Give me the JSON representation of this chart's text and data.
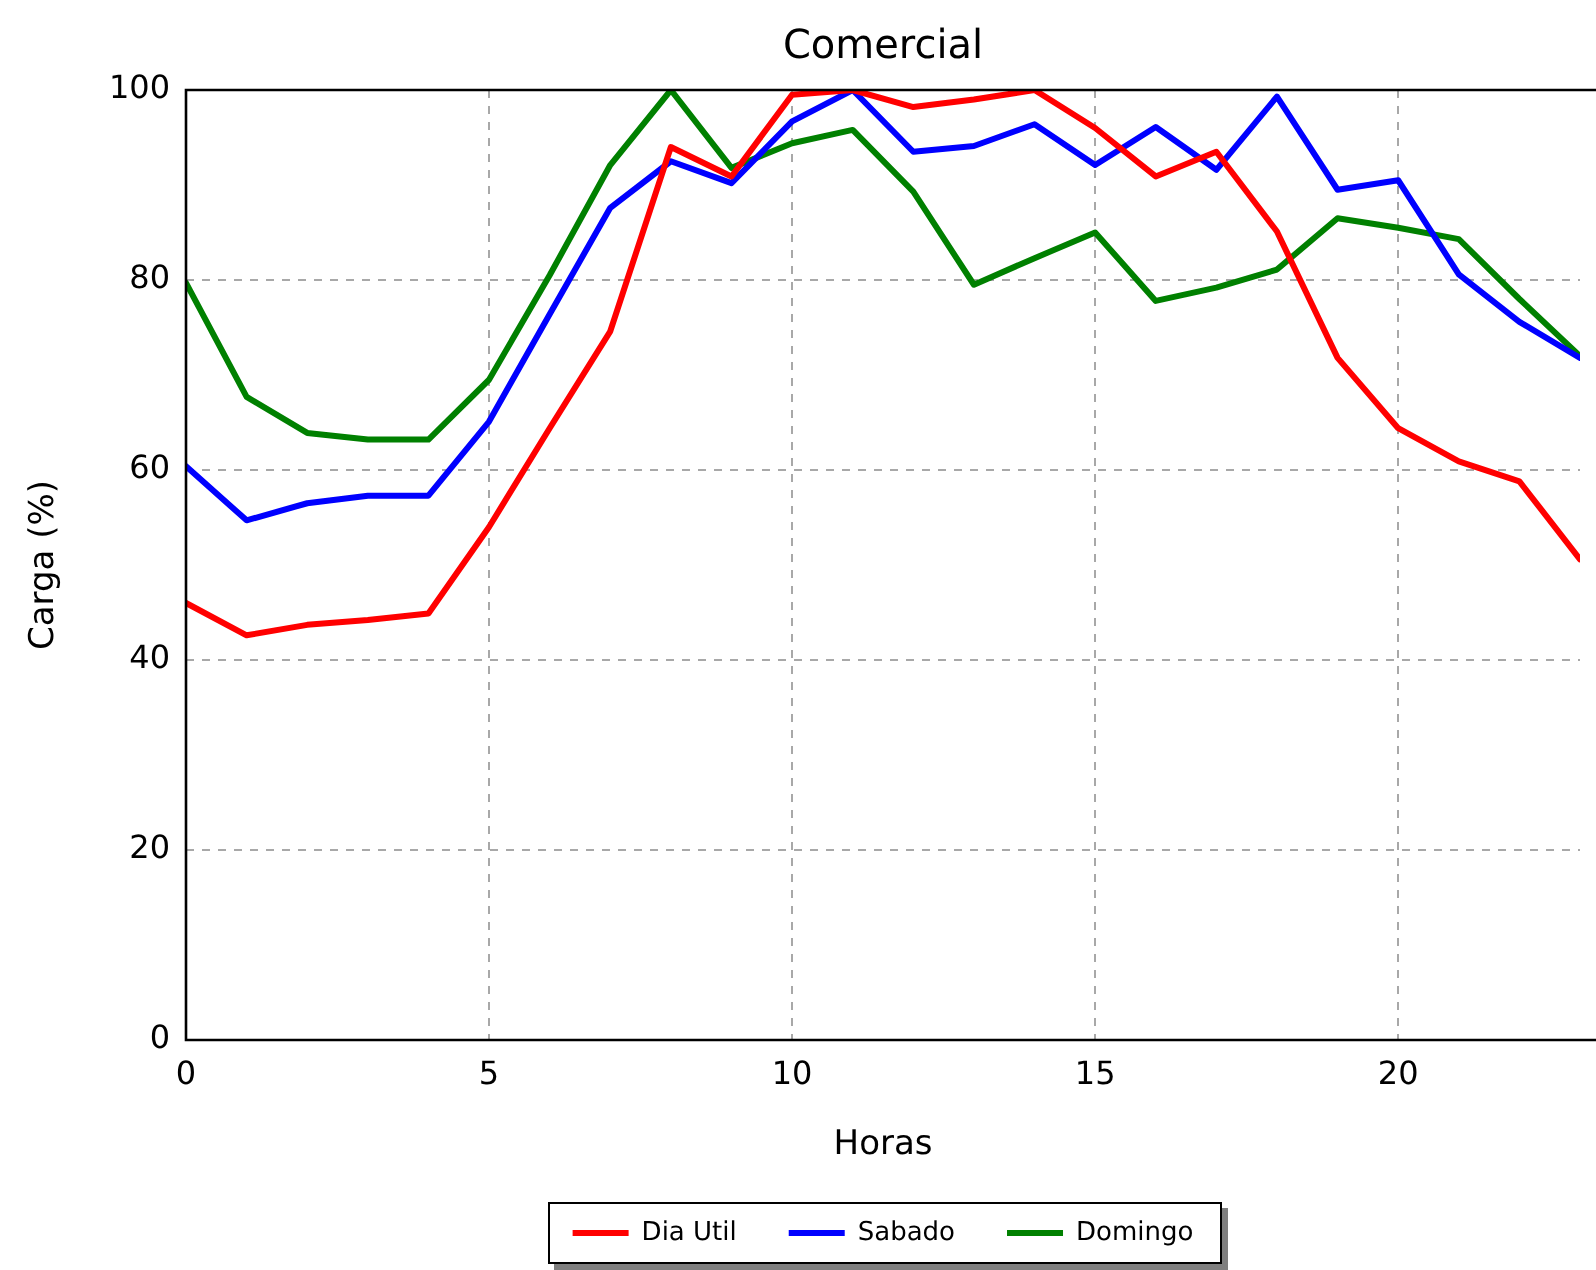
{
  "chart_data": {
    "type": "line",
    "title": "Comercial",
    "xlabel": "Horas",
    "ylabel": "Carga (%)",
    "x": [
      0,
      1,
      2,
      3,
      4,
      5,
      6,
      7,
      8,
      9,
      10,
      11,
      12,
      13,
      14,
      15,
      16,
      17,
      18,
      19,
      20,
      21,
      22,
      23
    ],
    "xlim": [
      0,
      23
    ],
    "xticks": [
      0,
      5,
      10,
      15,
      20
    ],
    "ylim": [
      0,
      100
    ],
    "yticks": [
      0,
      20,
      40,
      60,
      80,
      100
    ],
    "grid": true,
    "legend": "bottom",
    "marker": "none",
    "line_style": "solid",
    "series": [
      {
        "name": "Dia Util",
        "color": "#ff0000",
        "values": [
          46,
          42.6,
          43.7,
          44.2,
          44.9,
          54,
          64.4,
          74.6,
          94,
          90.9,
          99.5,
          100,
          98.2,
          99,
          100,
          96,
          90.9,
          93.5,
          85.1,
          71.8,
          64.4,
          60.9,
          58.8,
          50.6
        ]
      },
      {
        "name": "Sabado",
        "color": "#0000ff",
        "values": [
          60.4,
          54.7,
          56.5,
          57.3,
          57.3,
          65.1,
          76.4,
          87.6,
          92.5,
          90.2,
          96.7,
          100,
          93.5,
          94.1,
          96.4,
          92.1,
          96.1,
          91.6,
          99.3,
          89.5,
          90.5,
          80.6,
          75.6,
          71.8
        ]
      },
      {
        "name": "Domingo",
        "color": "#008000",
        "values": [
          79.7,
          67.7,
          63.9,
          63.2,
          63.2,
          69.5,
          80.5,
          92.1,
          100,
          91.8,
          94.4,
          95.8,
          89.3,
          79.5,
          82.3,
          85,
          77.8,
          79.2,
          81.1,
          86.5,
          85.5,
          84.3,
          78,
          72
        ]
      }
    ]
  }
}
